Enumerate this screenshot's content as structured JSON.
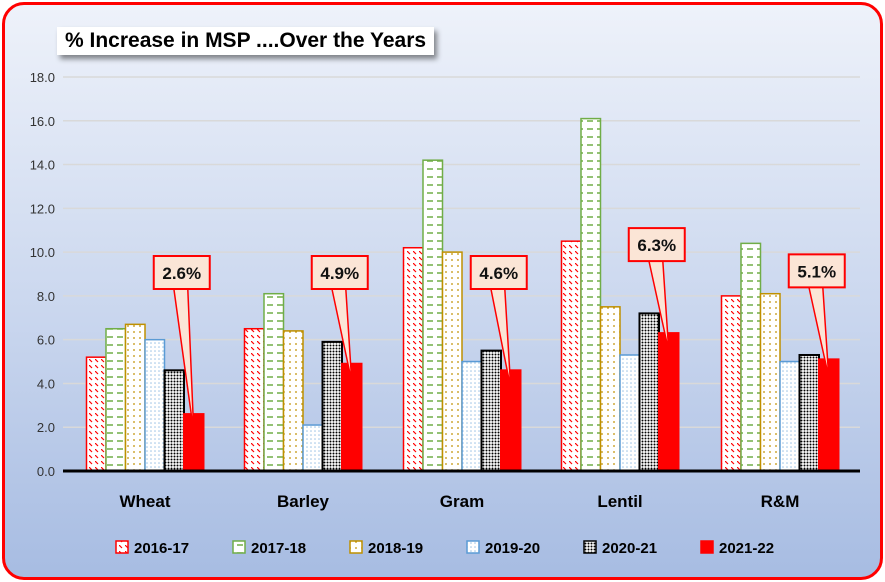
{
  "chart_data": {
    "type": "bar",
    "title": "% Increase in MSP ....Over the Years",
    "categories": [
      "Wheat",
      "Barley",
      "Gram",
      "Lentil",
      "R&M"
    ],
    "series": [
      {
        "name": "2016-17",
        "values": [
          5.2,
          6.5,
          10.2,
          10.5,
          8.0
        ],
        "color": "#ff0000",
        "pattern": "diagonal-dash"
      },
      {
        "name": "2017-18",
        "values": [
          6.5,
          8.1,
          14.2,
          16.1,
          10.4
        ],
        "color": "#70ad47",
        "pattern": "horizontal-dash"
      },
      {
        "name": "2018-19",
        "values": [
          6.7,
          6.4,
          10.0,
          7.5,
          8.1
        ],
        "color": "#bf9000",
        "pattern": "dotted"
      },
      {
        "name": "2019-20",
        "values": [
          6.0,
          2.1,
          5.0,
          5.3,
          5.0
        ],
        "color": "#5b9bd5",
        "pattern": "light-dots"
      },
      {
        "name": "2020-21",
        "values": [
          4.6,
          5.9,
          5.5,
          7.2,
          5.3
        ],
        "color": "#000000",
        "pattern": "dense-dots"
      },
      {
        "name": "2021-22",
        "values": [
          2.6,
          4.9,
          4.6,
          6.3,
          5.1
        ],
        "color": "#ff0000",
        "pattern": "solid"
      }
    ],
    "data_labels": [
      "2.6%",
      "4.9%",
      "4.6%",
      "6.3%",
      "5.1%"
    ],
    "yticks": [
      "0.0",
      "2.0",
      "4.0",
      "6.0",
      "8.0",
      "10.0",
      "12.0",
      "14.0",
      "16.0",
      "18.0"
    ],
    "ylim": [
      0,
      18
    ],
    "grid": true,
    "legend": "bottom",
    "xlabel": "",
    "ylabel": ""
  }
}
